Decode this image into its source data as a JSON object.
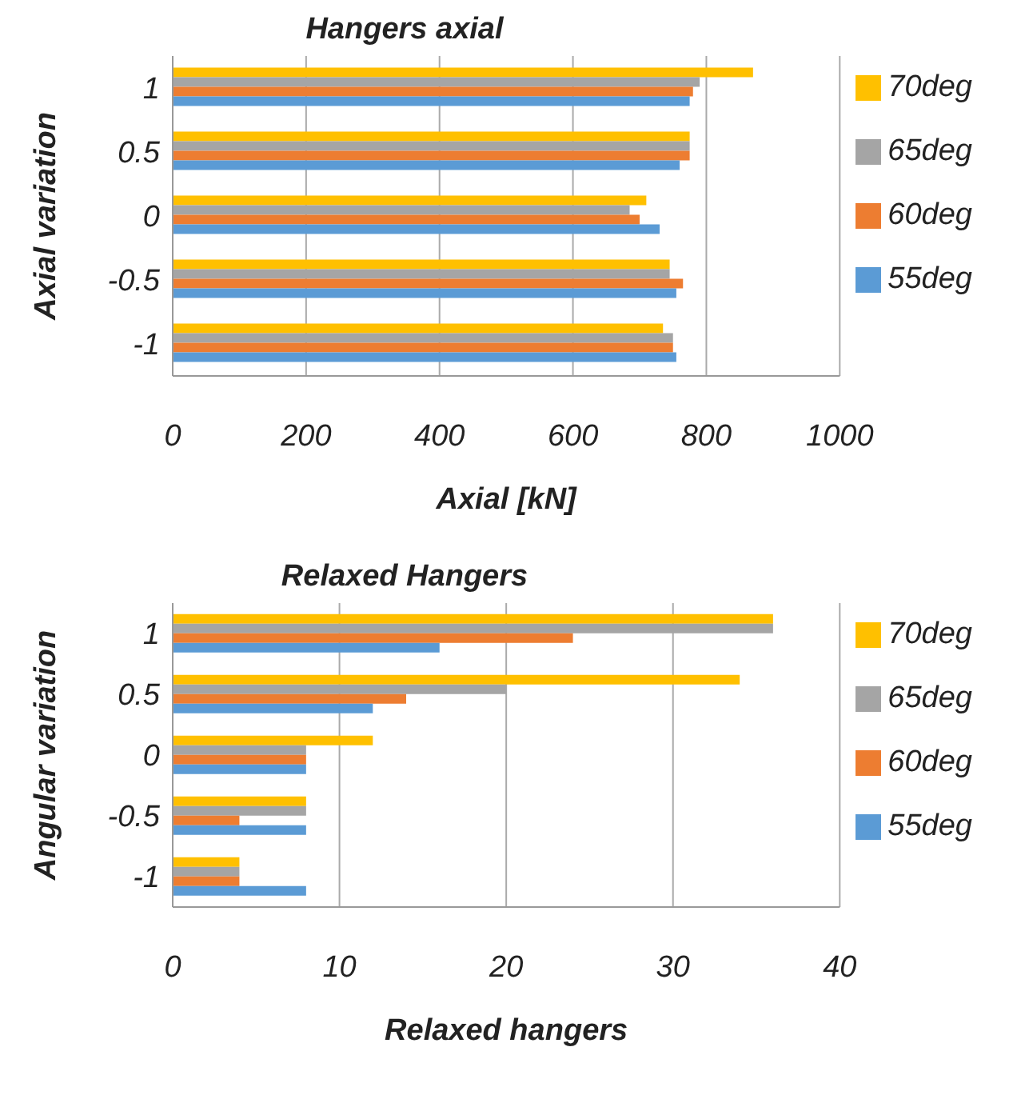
{
  "chart_data": [
    {
      "type": "bar",
      "orientation": "horizontal",
      "title": "Hangers axial",
      "xlabel": "Axial [kN]",
      "ylabel": "Axial variation",
      "categories": [
        "1",
        "0.5",
        "0",
        "-0.5",
        "-1"
      ],
      "series": [
        {
          "name": "70deg",
          "color": "#ffc000",
          "values": [
            870,
            775,
            710,
            745,
            735
          ]
        },
        {
          "name": "65deg",
          "color": "#a5a5a5",
          "values": [
            790,
            775,
            685,
            745,
            750
          ]
        },
        {
          "name": "60deg",
          "color": "#ed7d31",
          "values": [
            780,
            775,
            700,
            765,
            750
          ]
        },
        {
          "name": "55deg",
          "color": "#5b9bd5",
          "values": [
            775,
            760,
            730,
            755,
            755
          ]
        }
      ],
      "xlim": [
        0,
        1000
      ],
      "xticks": [
        0,
        200,
        400,
        600,
        800,
        1000
      ],
      "grid": "x",
      "legend": "right"
    },
    {
      "type": "bar",
      "orientation": "horizontal",
      "title": "Relaxed Hangers",
      "xlabel": "Relaxed hangers",
      "ylabel": "Angular variation",
      "categories": [
        "1",
        "0.5",
        "0",
        "-0.5",
        "-1"
      ],
      "series": [
        {
          "name": "70deg",
          "color": "#ffc000",
          "values": [
            36,
            34,
            12,
            8,
            4
          ]
        },
        {
          "name": "65deg",
          "color": "#a5a5a5",
          "values": [
            36,
            20,
            8,
            8,
            4
          ]
        },
        {
          "name": "60deg",
          "color": "#ed7d31",
          "values": [
            24,
            14,
            8,
            4,
            4
          ]
        },
        {
          "name": "55deg",
          "color": "#5b9bd5",
          "values": [
            16,
            12,
            8,
            8,
            8
          ]
        }
      ],
      "xlim": [
        0,
        40
      ],
      "xticks": [
        0,
        10,
        20,
        30,
        40
      ],
      "grid": "x",
      "legend": "right"
    }
  ]
}
